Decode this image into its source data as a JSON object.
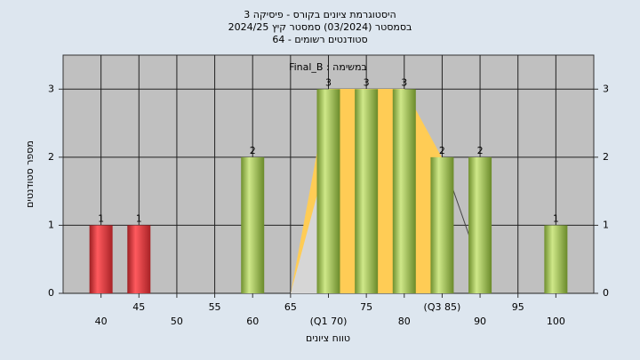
{
  "chart_data": {
    "type": "bar",
    "title": "היסטוגרמת ציונים בקורס - פיסיקה 3",
    "subtitle": "בסמסטר  (03/2024)  סמסטר קיץ 2024/25",
    "subtitle2": "סטודנטים רשומים - 64",
    "annotation": "Final_B : במשימה",
    "x_label": "טווח ציונים",
    "y_label": "מספר סטודנטים",
    "categories": [
      "40",
      "45",
      "50",
      "55",
      "60",
      "65",
      "(Q1 70)",
      "75",
      "80",
      "(Q3 85)",
      "90",
      "95",
      "100"
    ],
    "values": [
      1,
      1,
      0,
      0,
      2,
      0,
      3,
      3,
      3,
      2,
      2,
      0,
      1
    ],
    "colors": [
      "#e8383d",
      "#e8383d",
      "#a8cc5a",
      "#a8cc5a",
      "#a8cc5a",
      "#a8cc5a",
      "#a8cc5a",
      "#a8cc5a",
      "#a8cc5a",
      "#a8cc5a",
      "#a8cc5a",
      "#a8cc5a",
      "#a8cc5a"
    ],
    "ylim": [
      0,
      3.5
    ],
    "yticks": [
      0,
      1,
      2,
      3
    ],
    "grid": true
  }
}
